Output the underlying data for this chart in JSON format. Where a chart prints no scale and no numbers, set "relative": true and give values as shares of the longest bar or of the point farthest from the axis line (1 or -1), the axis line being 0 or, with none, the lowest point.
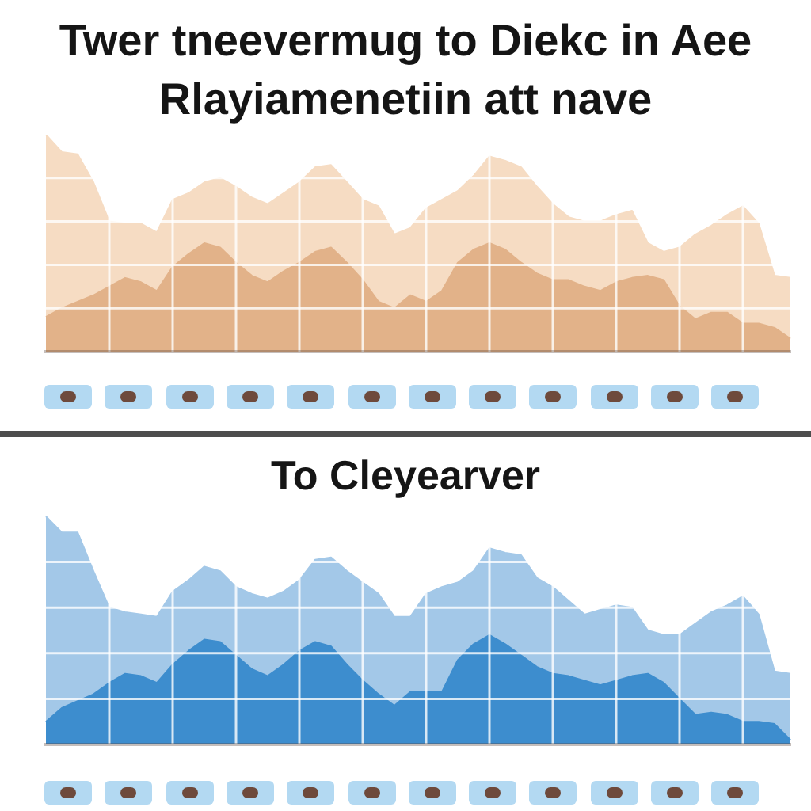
{
  "chart_data": [
    {
      "type": "area",
      "title": "Twer tneevermug to Diekc in Aee Rlayiamenetiin att nave",
      "relative": true,
      "grid": true,
      "categories": [
        null,
        null,
        null,
        null,
        null,
        null,
        null,
        null,
        null,
        null,
        null,
        null,
        null,
        null,
        null,
        null,
        null,
        null,
        null,
        null,
        null,
        null,
        null,
        null,
        null,
        null,
        null,
        null,
        null,
        null,
        null,
        null,
        null,
        null,
        null,
        null,
        null,
        null,
        null,
        null,
        null,
        null,
        null,
        null,
        null,
        null,
        null,
        null
      ],
      "series": [
        {
          "color": "#f6dcc3",
          "values": [
            1.0,
            0.92,
            0.91,
            0.78,
            0.6,
            0.59,
            0.59,
            0.55,
            0.7,
            0.73,
            0.78,
            0.8,
            0.76,
            0.71,
            0.68,
            0.73,
            0.78,
            0.85,
            0.86,
            0.78,
            0.7,
            0.67,
            0.54,
            0.57,
            0.66,
            0.7,
            0.74,
            0.81,
            0.9,
            0.88,
            0.85,
            0.76,
            0.68,
            0.62,
            0.6,
            0.6,
            0.63,
            0.65,
            0.5,
            0.46,
            0.48,
            0.54,
            0.58,
            0.63,
            0.67,
            0.59,
            0.35,
            0.34
          ]
        },
        {
          "color": "#e2b289",
          "values": [
            0.16,
            0.2,
            0.23,
            0.26,
            0.3,
            0.34,
            0.32,
            0.28,
            0.39,
            0.45,
            0.5,
            0.48,
            0.41,
            0.35,
            0.32,
            0.37,
            0.41,
            0.46,
            0.48,
            0.41,
            0.33,
            0.23,
            0.2,
            0.26,
            0.23,
            0.28,
            0.41,
            0.47,
            0.5,
            0.47,
            0.41,
            0.36,
            0.33,
            0.33,
            0.3,
            0.28,
            0.32,
            0.34,
            0.35,
            0.33,
            0.21,
            0.15,
            0.18,
            0.18,
            0.13,
            0.13,
            0.11,
            0.06
          ]
        }
      ]
    },
    {
      "type": "area",
      "title": "To Cleyearver",
      "relative": true,
      "grid": true,
      "categories": [
        null,
        null,
        null,
        null,
        null,
        null,
        null,
        null,
        null,
        null,
        null,
        null,
        null,
        null,
        null,
        null,
        null,
        null,
        null,
        null,
        null,
        null,
        null,
        null,
        null,
        null,
        null,
        null,
        null,
        null,
        null,
        null,
        null,
        null,
        null,
        null,
        null,
        null,
        null,
        null,
        null,
        null,
        null,
        null,
        null,
        null,
        null,
        null
      ],
      "series": [
        {
          "color": "#a3c8e8",
          "values": [
            1.0,
            0.93,
            0.93,
            0.76,
            0.6,
            0.58,
            0.57,
            0.56,
            0.67,
            0.72,
            0.78,
            0.76,
            0.69,
            0.66,
            0.64,
            0.67,
            0.72,
            0.81,
            0.82,
            0.76,
            0.71,
            0.66,
            0.56,
            0.56,
            0.66,
            0.69,
            0.71,
            0.76,
            0.86,
            0.84,
            0.83,
            0.73,
            0.69,
            0.63,
            0.57,
            0.59,
            0.61,
            0.6,
            0.5,
            0.48,
            0.48,
            0.53,
            0.58,
            0.61,
            0.65,
            0.57,
            0.32,
            0.31
          ]
        },
        {
          "color": "#3d8dce",
          "values": [
            0.1,
            0.16,
            0.19,
            0.22,
            0.27,
            0.31,
            0.3,
            0.27,
            0.35,
            0.41,
            0.46,
            0.45,
            0.39,
            0.33,
            0.3,
            0.35,
            0.41,
            0.45,
            0.43,
            0.35,
            0.28,
            0.22,
            0.17,
            0.23,
            0.23,
            0.23,
            0.37,
            0.44,
            0.48,
            0.44,
            0.39,
            0.34,
            0.31,
            0.3,
            0.28,
            0.26,
            0.28,
            0.3,
            0.31,
            0.27,
            0.2,
            0.13,
            0.14,
            0.13,
            0.1,
            0.1,
            0.09,
            0.02
          ]
        }
      ]
    }
  ]
}
